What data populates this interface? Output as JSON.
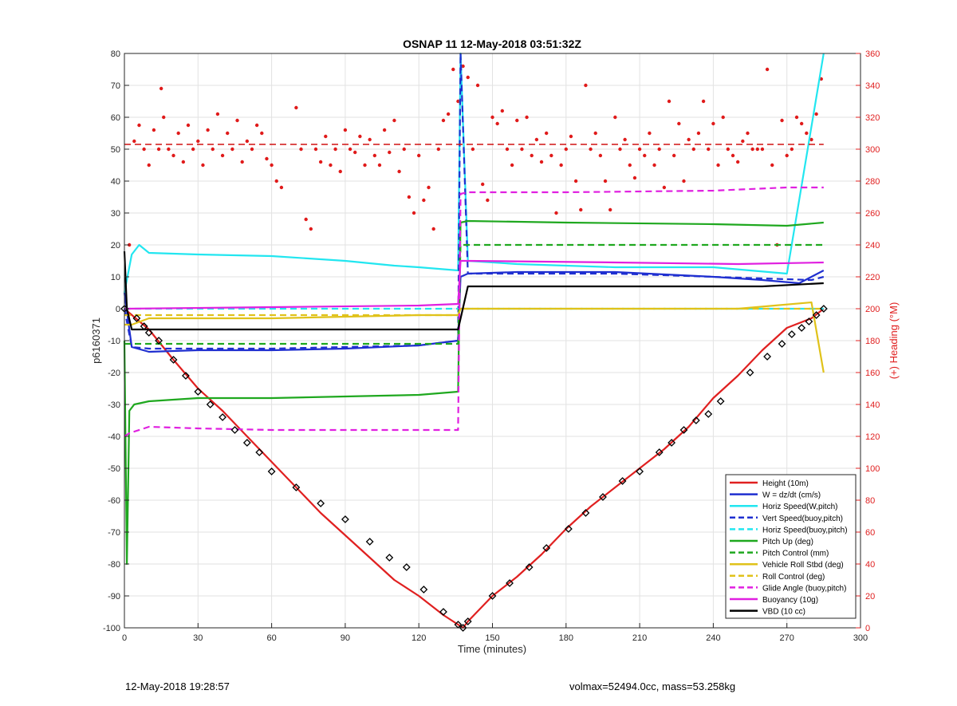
{
  "chart_data": {
    "type": "line",
    "title": "OSNAP 11 12-May-2018 03:51:32Z",
    "xlabel": "Time (minutes)",
    "ylabel": "p6160371",
    "y2label": "(+) Heading (°M)",
    "xlim": [
      0,
      300
    ],
    "ylim": [
      -100,
      80
    ],
    "y2lim": [
      0,
      360
    ],
    "xticks": [
      0,
      30,
      60,
      90,
      120,
      150,
      180,
      210,
      240,
      270,
      300
    ],
    "yticks": [
      -100,
      -90,
      -80,
      -70,
      -60,
      -50,
      -40,
      -30,
      -20,
      -10,
      0,
      10,
      20,
      30,
      40,
      50,
      60,
      70,
      80
    ],
    "y2ticks": [
      0,
      20,
      40,
      60,
      80,
      100,
      120,
      140,
      160,
      180,
      200,
      220,
      240,
      260,
      280,
      300,
      320,
      340,
      360
    ],
    "grid": true,
    "legend_position": "bottom-right",
    "legend": [
      {
        "label": "Height (10m)",
        "color": "#e02020",
        "dash": "solid"
      },
      {
        "label": "W = dz/dt (cm/s)",
        "color": "#1f2fd0",
        "dash": "solid"
      },
      {
        "label": "Horiz Speed(W,pitch)",
        "color": "#22e6f0",
        "dash": "solid"
      },
      {
        "label": "Vert Speed(buoy,pitch)",
        "color": "#1f2fd0",
        "dash": "dashed"
      },
      {
        "label": "Horiz Speed(buoy,pitch)",
        "color": "#22e6f0",
        "dash": "dashed"
      },
      {
        "label": "Pitch Up (deg)",
        "color": "#1fa81f",
        "dash": "solid"
      },
      {
        "label": "Pitch Control (mm)",
        "color": "#1fa81f",
        "dash": "dashed"
      },
      {
        "label": "Vehicle Roll Stbd (deg)",
        "color": "#e0c21a",
        "dash": "solid"
      },
      {
        "label": "Roll Control (deg)",
        "color": "#e0c21a",
        "dash": "dashed"
      },
      {
        "label": "Glide Angle (buoy,pitch)",
        "color": "#e020e0",
        "dash": "dashed"
      },
      {
        "label": "Buoyancy (10g)",
        "color": "#e020e0",
        "dash": "solid"
      },
      {
        "label": "VBD (10 cc)",
        "color": "#000000",
        "dash": "solid"
      }
    ],
    "series": [
      {
        "name": "Height (10m)",
        "axis": "left",
        "color": "#e02020",
        "dash": "solid",
        "x": [
          0,
          10,
          20,
          30,
          40,
          50,
          60,
          70,
          80,
          90,
          100,
          110,
          120,
          130,
          138,
          140,
          150,
          160,
          170,
          180,
          190,
          200,
          210,
          220,
          230,
          240,
          250,
          260,
          270,
          280,
          285
        ],
        "y": [
          0,
          -6.5,
          -16,
          -25,
          -32,
          -40,
          -48,
          -56,
          -64,
          -71,
          -78,
          -85,
          -90,
          -96,
          -100,
          -98,
          -90,
          -84,
          -77,
          -69,
          -62,
          -56,
          -50,
          -44,
          -37,
          -28,
          -21,
          -13,
          -6,
          -3,
          0
        ]
      },
      {
        "name": "W = dz/dt (cm/s)",
        "axis": "left",
        "color": "#1f2fd0",
        "dash": "solid",
        "x": [
          0,
          3,
          10,
          30,
          60,
          90,
          120,
          136,
          137,
          140,
          160,
          200,
          240,
          260,
          275,
          285
        ],
        "y": [
          5,
          -12,
          -13.5,
          -13,
          -13,
          -12.5,
          -11.5,
          -10,
          10,
          11,
          11.5,
          11.5,
          10,
          9,
          8,
          12
        ]
      },
      {
        "name": "Horiz Speed(W,pitch)",
        "axis": "left",
        "color": "#22e6f0",
        "dash": "solid",
        "x": [
          0,
          3,
          6,
          10,
          30,
          60,
          90,
          110,
          120,
          136,
          137,
          140,
          160,
          200,
          240,
          270,
          285
        ],
        "y": [
          5,
          17,
          20,
          17.5,
          17,
          16.5,
          15,
          13.5,
          13,
          12,
          80,
          15,
          14,
          13,
          13,
          11,
          80
        ]
      },
      {
        "name": "Vert Speed(buoy,pitch)",
        "axis": "left",
        "color": "#1f2fd0",
        "dash": "dashed",
        "x": [
          0,
          3,
          10,
          60,
          120,
          136,
          137,
          140,
          200,
          240,
          280,
          285
        ],
        "y": [
          0,
          -12,
          -12.5,
          -12.5,
          -11.5,
          -10,
          80,
          11,
          11,
          10,
          9,
          10
        ]
      },
      {
        "name": "Horiz Speed(buoy,pitch)",
        "axis": "left",
        "color": "#22e6f0",
        "dash": "dashed",
        "x": [
          0,
          136,
          137,
          285
        ],
        "y": [
          0,
          0,
          0,
          0
        ]
      },
      {
        "name": "Pitch Up (deg)",
        "axis": "left",
        "color": "#1fa81f",
        "dash": "solid",
        "x": [
          0,
          1,
          2,
          4,
          10,
          30,
          60,
          90,
          120,
          136,
          137,
          140,
          180,
          240,
          270,
          285
        ],
        "y": [
          -10,
          -80,
          -32,
          -30,
          -29,
          -28,
          -28,
          -27.5,
          -27,
          -26,
          27,
          27.5,
          27,
          26.5,
          26,
          27
        ]
      },
      {
        "name": "Pitch Control (mm)",
        "axis": "left",
        "color": "#1fa81f",
        "dash": "dashed",
        "x": [
          0,
          5,
          136,
          137,
          285
        ],
        "y": [
          -11,
          -11,
          -11,
          20,
          20
        ]
      },
      {
        "name": "Vehicle Roll Stbd (deg)",
        "axis": "left",
        "color": "#e0c21a",
        "dash": "solid",
        "x": [
          0,
          3,
          10,
          60,
          120,
          136,
          137,
          150,
          200,
          250,
          280,
          285
        ],
        "y": [
          -5,
          -5,
          -3,
          -3,
          -2,
          -2,
          0,
          0,
          0,
          0,
          2,
          -20
        ]
      },
      {
        "name": "Roll Control (deg)",
        "axis": "left",
        "color": "#e0c21a",
        "dash": "dashed",
        "x": [
          0,
          136,
          137,
          285
        ],
        "y": [
          -2,
          -2,
          0,
          0
        ]
      },
      {
        "name": "Glide Angle (buoy,pitch)",
        "axis": "left",
        "color": "#e020e0",
        "dash": "dashed",
        "x": [
          0,
          2,
          10,
          30,
          60,
          90,
          120,
          136,
          137,
          140,
          180,
          240,
          270,
          285
        ],
        "y": [
          -40,
          -39,
          -37,
          -37.5,
          -38,
          -38,
          -38,
          -38,
          36,
          36.5,
          36.5,
          37,
          38,
          38
        ]
      },
      {
        "name": "Buoyancy (10g)",
        "axis": "left",
        "color": "#e020e0",
        "dash": "solid",
        "x": [
          0,
          60,
          120,
          136,
          137,
          140,
          200,
          250,
          285
        ],
        "y": [
          0,
          0.5,
          1,
          1.5,
          15,
          15,
          14.5,
          14,
          14.5
        ]
      },
      {
        "name": "VBD (10 cc)",
        "axis": "left",
        "color": "#000000",
        "dash": "solid",
        "x": [
          0,
          1,
          3,
          136,
          140,
          260,
          285
        ],
        "y": [
          18,
          0,
          -6.5,
          -6.5,
          7,
          7,
          8
        ]
      },
      {
        "name": "",
        "axis": "right",
        "color": "#d01010",
        "dash": "dashed",
        "role": "mean-heading",
        "x": [
          0,
          285
        ],
        "y": [
          303,
          303
        ]
      }
    ],
    "heading_points": {
      "axis": "right",
      "color": "#e01a1a",
      "x": [
        2,
        4,
        6,
        8,
        10,
        12,
        14,
        15,
        16,
        18,
        20,
        22,
        24,
        26,
        28,
        30,
        32,
        34,
        36,
        38,
        40,
        42,
        44,
        46,
        48,
        50,
        52,
        54,
        56,
        58,
        60,
        62,
        64,
        70,
        72,
        74,
        76,
        78,
        80,
        82,
        84,
        86,
        88,
        90,
        92,
        94,
        96,
        98,
        100,
        102,
        104,
        106,
        108,
        110,
        112,
        114,
        116,
        118,
        120,
        122,
        124,
        126,
        128,
        130,
        132,
        134,
        136,
        138,
        140,
        142,
        144,
        146,
        148,
        150,
        152,
        154,
        156,
        158,
        160,
        162,
        164,
        166,
        168,
        170,
        172,
        174,
        176,
        178,
        180,
        182,
        184,
        186,
        188,
        190,
        192,
        194,
        196,
        198,
        200,
        202,
        204,
        206,
        208,
        210,
        212,
        214,
        216,
        218,
        220,
        222,
        224,
        226,
        228,
        230,
        232,
        234,
        236,
        238,
        240,
        242,
        244,
        246,
        248,
        250,
        252,
        254,
        256,
        258,
        260,
        262,
        264,
        266,
        268,
        270,
        272,
        274,
        276,
        278,
        280,
        282,
        284
      ],
      "y": [
        240,
        305,
        315,
        300,
        290,
        312,
        300,
        338,
        320,
        300,
        296,
        310,
        292,
        315,
        300,
        305,
        290,
        312,
        300,
        322,
        296,
        310,
        300,
        318,
        292,
        305,
        300,
        315,
        310,
        294,
        290,
        280,
        276,
        326,
        300,
        256,
        250,
        300,
        292,
        308,
        290,
        300,
        286,
        312,
        300,
        298,
        308,
        290,
        306,
        296,
        290,
        312,
        298,
        318,
        286,
        300,
        270,
        260,
        296,
        268,
        276,
        250,
        300,
        318,
        322,
        350,
        330,
        352,
        345,
        300,
        340,
        278,
        268,
        320,
        316,
        324,
        300,
        290,
        318,
        300,
        320,
        296,
        306,
        292,
        310,
        296,
        260,
        290,
        300,
        308,
        280,
        262,
        340,
        300,
        310,
        296,
        280,
        262,
        320,
        300,
        306,
        290,
        282,
        300,
        296,
        310,
        290,
        300,
        276,
        330,
        296,
        316,
        280,
        306,
        300,
        310,
        330,
        300,
        316,
        290,
        320,
        300,
        296,
        292,
        305,
        310,
        300,
        300,
        300,
        350,
        290,
        240,
        318,
        296,
        300,
        320,
        316,
        310,
        306,
        322,
        344
      ]
    },
    "dive_markers": {
      "axis": "left",
      "symbol": "diamond/triangle",
      "x": [
        0,
        5,
        8,
        10,
        14,
        20,
        25,
        30,
        35,
        40,
        45,
        50,
        55,
        60,
        70,
        80,
        90,
        100,
        108,
        115,
        122,
        130,
        136,
        138,
        140,
        150,
        157,
        165,
        172,
        181,
        188,
        195,
        203,
        210,
        218,
        223,
        228,
        233,
        238,
        243,
        255,
        262,
        268,
        272,
        276,
        279,
        282,
        285
      ],
      "y": [
        0,
        -3,
        -5.5,
        -7.5,
        -10,
        -16,
        -21,
        -26,
        -30,
        -34,
        -38,
        -42,
        -45,
        -51,
        -56,
        -61,
        -66,
        -73,
        -78,
        -81,
        -88,
        -95,
        -99,
        -100,
        -98,
        -90,
        -86,
        -81,
        -75,
        -69,
        -64,
        -59,
        -54,
        -51,
        -45,
        -42,
        -38,
        -35,
        -33,
        -29,
        -20,
        -15,
        -11,
        -8,
        -6,
        -4,
        -2,
        0
      ]
    }
  },
  "footer": {
    "timestamp": "12-May-2018 19:28:57",
    "vehicle": "volmax=52494.0cc, mass=53.258kg"
  }
}
